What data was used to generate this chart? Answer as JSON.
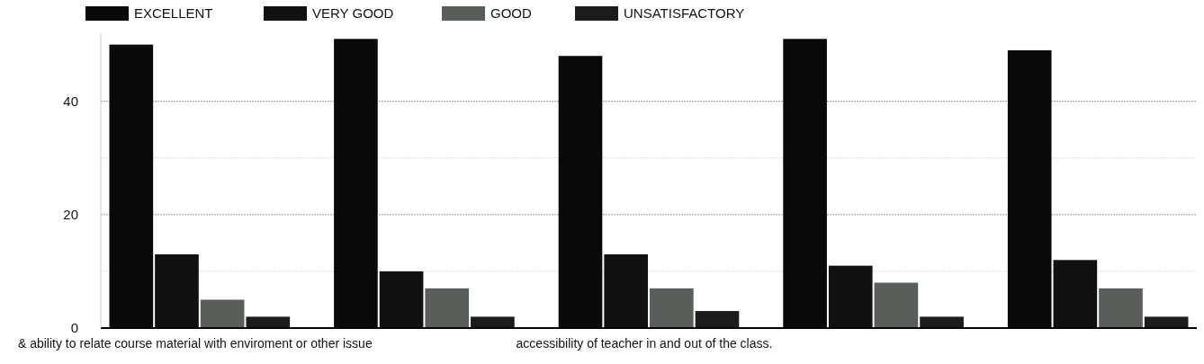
{
  "chart_data": {
    "type": "bar",
    "categories": [
      "& ability to relate course material with enviroment or other issue",
      null,
      "accessibility of teacher in and out of the class.",
      null,
      null
    ],
    "series": [
      {
        "name": "EXCELLENT",
        "color": "#0a0a0a",
        "values": [
          50,
          51,
          48,
          51,
          49
        ]
      },
      {
        "name": "VERY GOOD",
        "color": "#111111",
        "values": [
          13,
          10,
          13,
          11,
          12
        ]
      },
      {
        "name": "GOOD",
        "color": "#5a5e5a",
        "values": [
          5,
          7,
          7,
          8,
          7
        ]
      },
      {
        "name": "UNSATISFACTORY",
        "color": "#1c1c1c",
        "values": [
          2,
          2,
          3,
          2,
          2
        ]
      }
    ],
    "ylim": [
      0,
      52
    ],
    "yticks": [
      0,
      {
        "value": 10,
        "label": null
      },
      20,
      {
        "value": 30,
        "label": null
      },
      40
    ],
    "grid": "y",
    "legend": "top left"
  }
}
